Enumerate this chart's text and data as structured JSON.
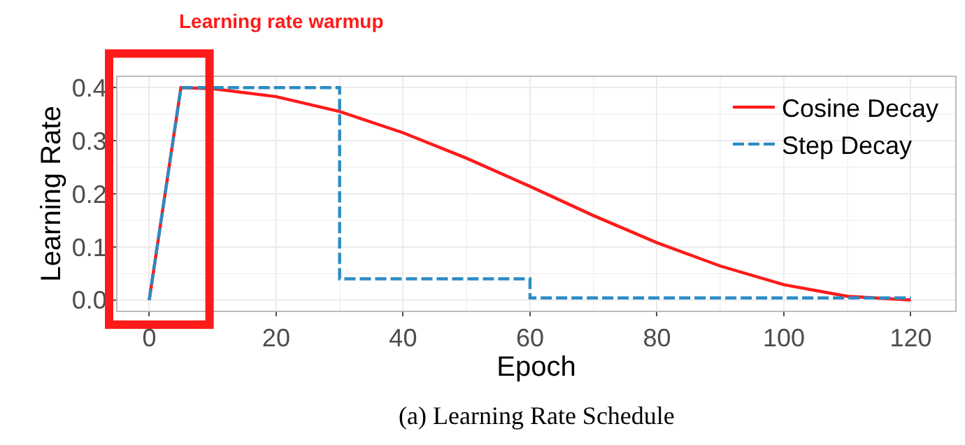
{
  "chart_data": {
    "type": "line",
    "xlabel": "Epoch",
    "ylabel": "Learning Rate",
    "x": [
      0,
      5,
      10,
      20,
      30,
      40,
      50,
      60,
      70,
      80,
      90,
      100,
      110,
      120
    ],
    "series": [
      {
        "name": "Cosine Decay",
        "color": "#ff1a1a",
        "line_style": "solid",
        "values": [
          0,
          0.4,
          0.398,
          0.383,
          0.355,
          0.315,
          0.267,
          0.214,
          0.159,
          0.108,
          0.064,
          0.029,
          0.007,
          0
        ]
      },
      {
        "name": "Step Decay",
        "color": "#2b8cc4",
        "line_style": "dashed",
        "x": [
          0,
          5,
          30,
          30,
          60,
          60,
          120
        ],
        "values": [
          0,
          0.4,
          0.4,
          0.04,
          0.04,
          0.004,
          0.004
        ]
      }
    ],
    "xlim": [
      -5,
      127
    ],
    "ylim": [
      -0.02,
      0.42
    ],
    "xticks": [
      0,
      20,
      40,
      60,
      80,
      100,
      120
    ],
    "yticks": [
      {
        "value": 0,
        "label": "0.0"
      },
      {
        "value": 0.1,
        "label": "0.1"
      },
      {
        "value": 0.2,
        "label": "0.2"
      },
      {
        "value": 0.3,
        "label": "0.3"
      },
      {
        "value": 0.4,
        "label": "0.4"
      }
    ],
    "grid": true,
    "legend": "top right",
    "marker": "none",
    "annotations": [
      "Learning rate warmup",
      "(a) Learning Rate Schedule"
    ]
  }
}
